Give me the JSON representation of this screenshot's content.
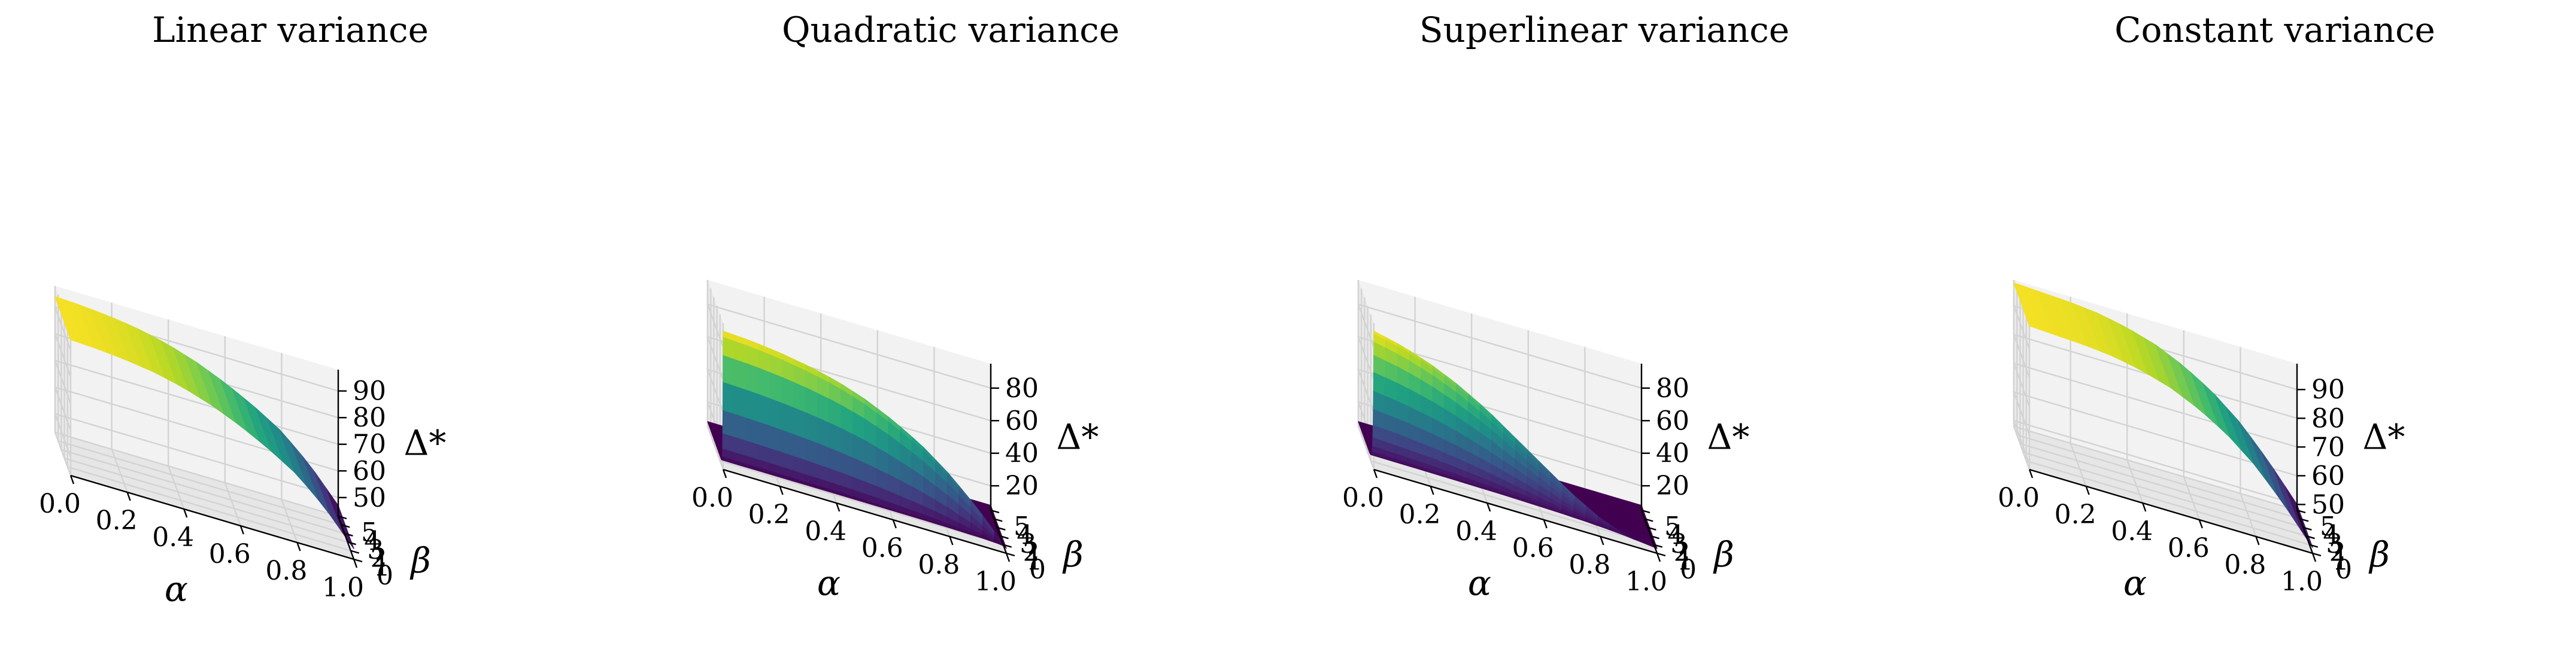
{
  "figure": {
    "colormap": "viridis",
    "pane_colors": [
      "#f2f2f2",
      "#ebebeb",
      "#e6e6e6"
    ]
  },
  "chart_data": [
    {
      "type": "surface",
      "title": "Linear variance",
      "xlabel": "α",
      "ylabel": "β",
      "zlabel": "Δ*",
      "xlim": [
        0,
        1
      ],
      "ylim": [
        0,
        5
      ],
      "zlim": [
        43,
        98
      ],
      "xticks": [
        "0.0",
        "0.2",
        "0.4",
        "0.6",
        "0.8",
        "1.0"
      ],
      "yticks": [
        "0",
        "1",
        "2",
        "3",
        "4",
        "5"
      ],
      "zticks": [
        "50",
        "60",
        "70",
        "80",
        "90"
      ],
      "zrange": [
        47,
        94
      ],
      "grid": true,
      "alpha": [
        0.0,
        0.1,
        0.2,
        0.3,
        0.4,
        0.5,
        0.6,
        0.7,
        0.8,
        0.9,
        1.0
      ],
      "z_vs_alpha": [
        94,
        93.5,
        92.5,
        91,
        88.5,
        85,
        80.5,
        75,
        68.5,
        59,
        47
      ],
      "beta_dependence": "none"
    },
    {
      "type": "surface",
      "title": "Quadratic variance",
      "xlabel": "α",
      "ylabel": "β",
      "zlabel": "Δ*",
      "xlim": [
        0,
        1
      ],
      "ylim": [
        0,
        5
      ],
      "zlim": [
        5,
        95
      ],
      "xticks": [
        "0.0",
        "0.2",
        "0.4",
        "0.6",
        "0.8",
        "1.0"
      ],
      "yticks": [
        "0",
        "1",
        "2",
        "3",
        "4",
        "5"
      ],
      "zticks": [
        "20",
        "40",
        "60",
        "80"
      ],
      "zrange": [
        8,
        90
      ],
      "grid": true,
      "alpha": [
        0.0,
        0.1,
        0.2,
        0.3,
        0.4,
        0.5,
        0.6,
        0.7,
        0.8,
        0.9,
        1.0
      ],
      "beta": [
        0.0,
        0.1,
        0.2,
        0.5,
        1.0,
        2.0,
        3.0,
        4.0,
        5.0
      ],
      "z_beta0_vs_alpha": [
        90,
        89,
        87,
        84,
        80,
        74,
        66,
        56,
        43,
        27,
        8
      ],
      "z_floor": 8,
      "beta_dependence": "falls rapidly from β=0 to floor by β≈0.2"
    },
    {
      "type": "surface",
      "title": "Superlinear variance",
      "xlabel": "α",
      "ylabel": "β",
      "zlabel": "Δ*",
      "xlim": [
        0,
        1
      ],
      "ylim": [
        0,
        5
      ],
      "zlim": [
        5,
        95
      ],
      "xticks": [
        "0.0",
        "0.2",
        "0.4",
        "0.6",
        "0.8",
        "1.0"
      ],
      "yticks": [
        "0",
        "1",
        "2",
        "3",
        "4",
        "5"
      ],
      "zticks": [
        "20",
        "40",
        "60",
        "80"
      ],
      "zrange": [
        8,
        90
      ],
      "grid": true,
      "alpha": [
        0.0,
        0.1,
        0.2,
        0.3,
        0.4,
        0.5,
        0.6,
        0.7,
        0.8,
        0.9,
        1.0
      ],
      "beta": [
        0.0,
        0.1,
        0.2,
        0.5,
        1.0,
        2.0,
        3.0,
        4.0,
        5.0
      ],
      "z_beta0_vs_alpha": [
        90,
        86,
        80,
        72,
        62,
        50,
        38,
        26,
        16,
        10,
        8
      ],
      "z_floor": 8,
      "beta_dependence": "falls from β=0 to floor by β≈0.5"
    },
    {
      "type": "surface",
      "title": "Constant variance",
      "xlabel": "α",
      "ylabel": "β",
      "zlabel": "Δ*",
      "xlim": [
        0,
        1
      ],
      "ylim": [
        0,
        5
      ],
      "zlim": [
        48,
        99
      ],
      "xticks": [
        "0.0",
        "0.2",
        "0.4",
        "0.6",
        "0.8",
        "1.0"
      ],
      "yticks": [
        "0",
        "1",
        "2",
        "3",
        "4",
        "5"
      ],
      "zticks": [
        "50",
        "60",
        "70",
        "80",
        "90"
      ],
      "zrange": [
        50,
        98
      ],
      "grid": true,
      "alpha": [
        0.0,
        0.1,
        0.2,
        0.3,
        0.4,
        0.5,
        0.6,
        0.7,
        0.8,
        0.9,
        1.0
      ],
      "z_vs_alpha": [
        98,
        97.5,
        97,
        96,
        94,
        91,
        86.5,
        80.5,
        72.5,
        62,
        50
      ],
      "beta_dependence": "none"
    }
  ]
}
